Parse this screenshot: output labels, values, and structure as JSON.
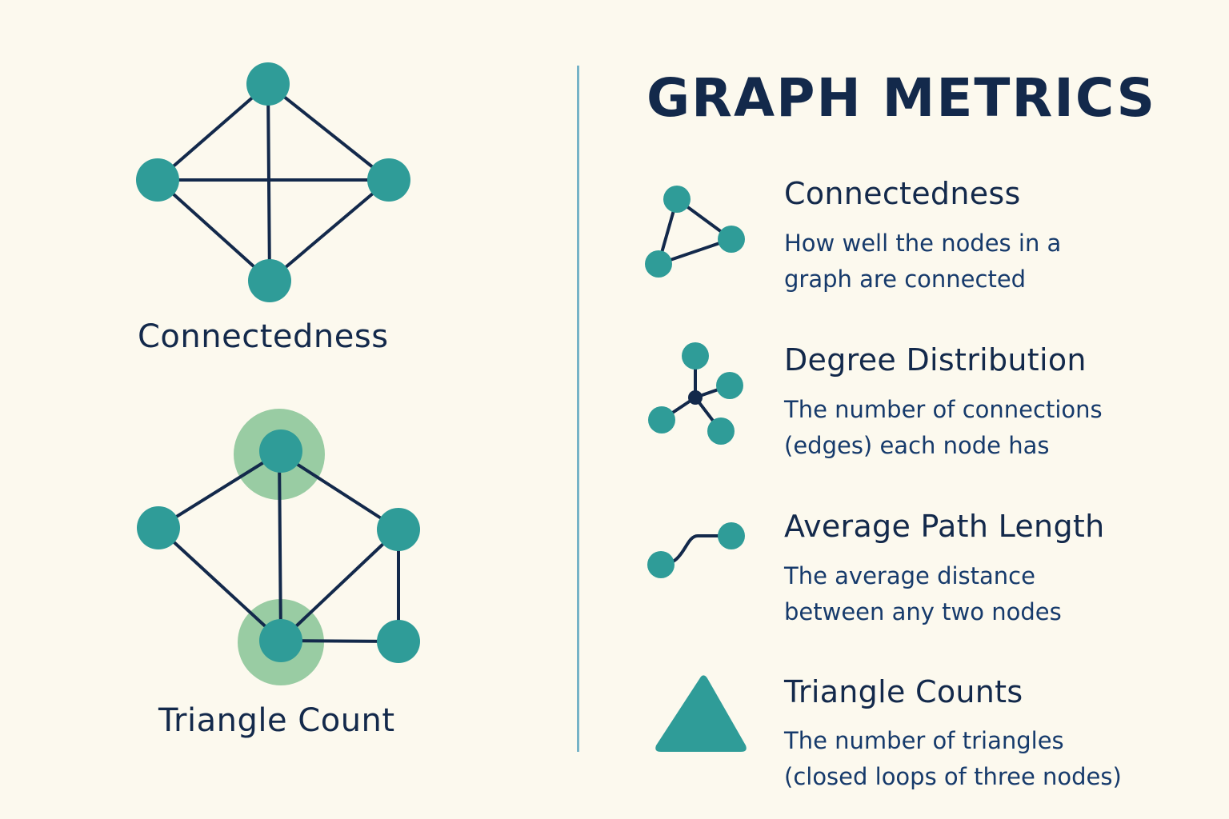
{
  "colors": {
    "background": "#fcf9ee",
    "node": "#2f9c98",
    "edge": "#13294b",
    "highlight": "#93c99e",
    "divider": "#76b3c7",
    "text": "#13294b"
  },
  "left_panel": {
    "connectedness_label": "Connectedness",
    "triangle_count_label": "Triangle Count"
  },
  "right_panel": {
    "title": "GRAPH METRICS",
    "metrics": [
      {
        "icon": "triangle-network-icon",
        "heading": "Connectedness",
        "description_line1": "How well the nodes in a",
        "description_line2": "graph are connected"
      },
      {
        "icon": "hub-network-icon",
        "heading": "Degree Distribution",
        "description_line1": "The number of connections",
        "description_line2": "(edges) each node has"
      },
      {
        "icon": "path-curve-icon",
        "heading": "Average Path Length",
        "description_line1": "The average distance",
        "description_line2": "between any two nodes"
      },
      {
        "icon": "solid-triangle-icon",
        "heading": "Triangle Counts",
        "description_line1": "The number of triangles",
        "description_line2": "(closed loops of three nodes)"
      }
    ]
  }
}
